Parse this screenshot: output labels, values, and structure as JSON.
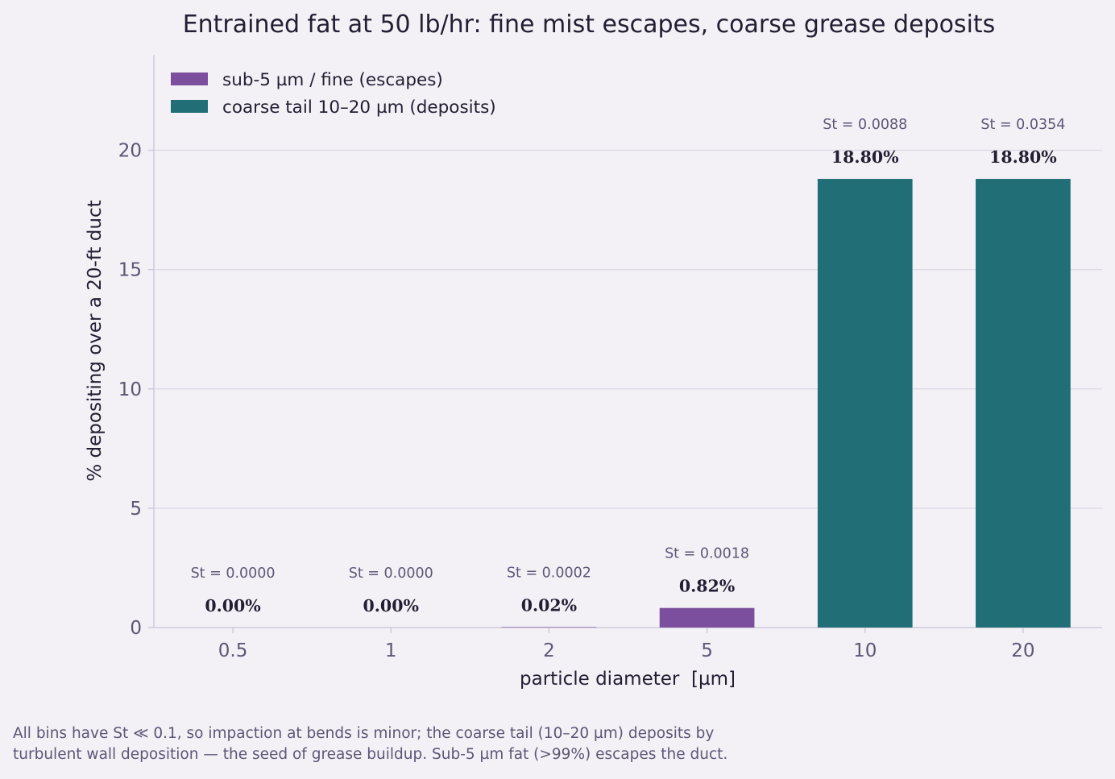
{
  "chart_data": {
    "type": "bar",
    "title": "Entrained fat at 50 lb/hr: fine mist escapes, coarse grease deposits",
    "xlabel": "particle diameter  [µm]",
    "ylabel": "% depositing over a 20-ft duct",
    "ylim": [
      0,
      24
    ],
    "yticks": [
      0,
      5,
      10,
      15,
      20
    ],
    "grid": true,
    "legend_position": "top-left",
    "categories": [
      "0.5",
      "1",
      "2",
      "5",
      "10",
      "20"
    ],
    "values": [
      0.0,
      0.0,
      0.02,
      0.82,
      18.8,
      18.8
    ],
    "value_labels": [
      "0.00%",
      "0.00%",
      "0.02%",
      "0.82%",
      "18.80%",
      "18.80%"
    ],
    "stokes_labels": [
      "St = 0.0000",
      "St = 0.0000",
      "St = 0.0002",
      "St = 0.0018",
      "St = 0.0088",
      "St = 0.0354"
    ],
    "bar_groups": [
      "fine",
      "fine",
      "fine",
      "fine",
      "coarse",
      "coarse"
    ],
    "series": [
      {
        "key": "fine",
        "name": "sub-5 µm / fine (escapes)",
        "color": "#7b4f9d"
      },
      {
        "key": "coarse",
        "name": "coarse tail 10–20 µm (deposits)",
        "color": "#216e76"
      }
    ]
  },
  "footnote": {
    "line1": "All bins have St ≪ 0.1, so impaction at bends is minor; the coarse tail (10–20 µm) deposits by",
    "line2": "turbulent wall deposition — the seed of grease buildup. Sub-5 µm fat (>99%) escapes the duct."
  }
}
